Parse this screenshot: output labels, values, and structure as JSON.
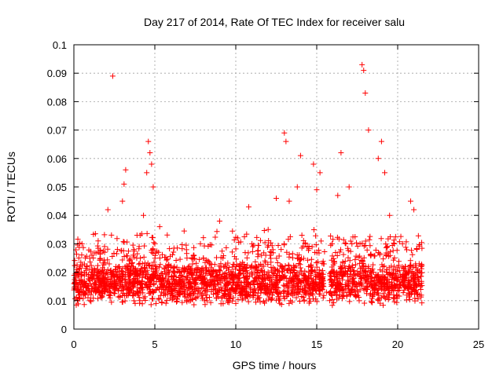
{
  "chart_data": {
    "type": "scatter",
    "title": "Day 217 of 2014, Rate Of TEC Index for receiver salu",
    "xlabel": "GPS time / hours",
    "ylabel": "ROTI / TECUs",
    "xlim": [
      0,
      25
    ],
    "ylim": [
      0,
      0.1
    ],
    "xticks": [
      0,
      5,
      10,
      15,
      20,
      25
    ],
    "yticks": [
      0,
      0.01,
      0.02,
      0.03,
      0.04,
      0.05,
      0.06,
      0.07,
      0.08,
      0.09,
      0.1
    ],
    "xtick_labels": [
      "0",
      "5",
      "10",
      "15",
      "20",
      "25"
    ],
    "ytick_labels": [
      "0",
      "0.01",
      "0.02",
      "0.03",
      "0.04",
      "0.05",
      "0.06",
      "0.07",
      "0.08",
      "0.09",
      "0.1"
    ],
    "grid": true,
    "marker": "+",
    "color": "#ff0000",
    "series": [
      {
        "name": "ROTI",
        "x": [
          0.1,
          0.3,
          0.5,
          0.6,
          0.8,
          1.0,
          1.2,
          1.4,
          1.5,
          1.7,
          1.9,
          2.1,
          2.3,
          2.4,
          2.6,
          2.8,
          3.0,
          3.1,
          3.2,
          3.3,
          3.5,
          3.7,
          3.9,
          4.1,
          4.3,
          4.5,
          4.6,
          4.7,
          4.8,
          4.9,
          5.0,
          5.1,
          5.3,
          5.5,
          5.7,
          5.9,
          6.1,
          6.3,
          6.5,
          6.8,
          7.0,
          7.3,
          7.5,
          7.8,
          8.0,
          8.2,
          8.5,
          8.8,
          9.0,
          9.3,
          9.5,
          9.8,
          10.0,
          10.3,
          10.5,
          10.8,
          11.0,
          11.3,
          11.5,
          11.8,
          12.0,
          12.3,
          12.5,
          12.8,
          13.0,
          13.1,
          13.3,
          13.6,
          13.8,
          14.0,
          14.3,
          14.5,
          14.8,
          15.0,
          15.2,
          15.4,
          15.6,
          15.8,
          16.0,
          16.3,
          16.5,
          16.8,
          17.0,
          17.3,
          17.5,
          17.8,
          17.9,
          18.0,
          18.2,
          18.5,
          18.8,
          19.0,
          19.2,
          19.5,
          19.8,
          20.0,
          20.3,
          20.5,
          20.8,
          21.0,
          21.2,
          21.4
        ],
        "y": [
          0.018,
          0.012,
          0.03,
          0.015,
          0.022,
          0.01,
          0.025,
          0.019,
          0.031,
          0.02,
          0.027,
          0.042,
          0.015,
          0.089,
          0.022,
          0.018,
          0.045,
          0.051,
          0.056,
          0.021,
          0.014,
          0.028,
          0.033,
          0.025,
          0.04,
          0.055,
          0.066,
          0.062,
          0.058,
          0.05,
          0.03,
          0.022,
          0.036,
          0.018,
          0.015,
          0.02,
          0.012,
          0.016,
          0.013,
          0.014,
          0.012,
          0.018,
          0.016,
          0.013,
          0.025,
          0.011,
          0.014,
          0.02,
          0.038,
          0.012,
          0.016,
          0.014,
          0.009,
          0.022,
          0.018,
          0.043,
          0.03,
          0.02,
          0.015,
          0.024,
          0.035,
          0.019,
          0.046,
          0.028,
          0.069,
          0.066,
          0.045,
          0.02,
          0.05,
          0.061,
          0.03,
          0.022,
          0.058,
          0.049,
          0.055,
          0.017,
          0.013,
          0.01,
          0.02,
          0.047,
          0.062,
          0.03,
          0.05,
          0.016,
          0.015,
          0.093,
          0.091,
          0.083,
          0.07,
          0.02,
          0.06,
          0.066,
          0.055,
          0.04,
          0.025,
          0.018,
          0.03,
          0.015,
          0.045,
          0.042,
          0.02,
          0.015
        ]
      }
    ],
    "dense_ranges": [
      {
        "x_start": 0.0,
        "x_end": 15.5,
        "y_min": 0.005,
        "y_max": 0.035
      },
      {
        "x_start": 15.8,
        "x_end": 21.5,
        "y_min": 0.004,
        "y_max": 0.033
      }
    ]
  }
}
